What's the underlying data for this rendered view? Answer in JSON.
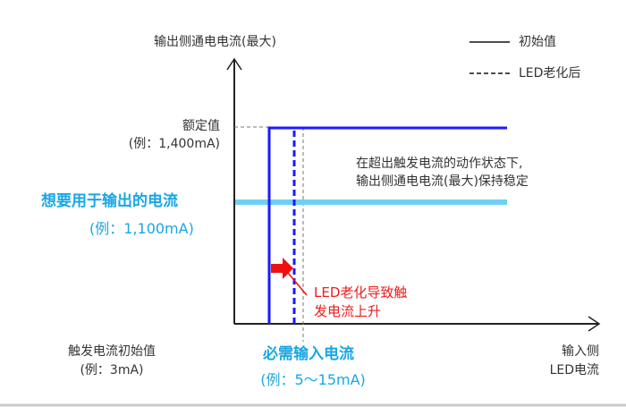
{
  "y_axis_label": "输出侧通电电流(最大)",
  "x_axis_label": [
    "输入侧",
    "LED电流"
  ],
  "legend": {
    "initial": "初始值",
    "aged": "LED老化后"
  },
  "rated": {
    "label": "额定值",
    "example": "(例：1,400mA)"
  },
  "desired_output": {
    "label": "想要用于输出的电流",
    "example": "(例：1,100mA)"
  },
  "trigger_initial": {
    "label": "触发电流初始值",
    "example": "(例：3mA)"
  },
  "required_input": {
    "label": "必需输入电流",
    "example": "(例：5～15mA)"
  },
  "stable_note": [
    "在超出触发电流的动作状态下,",
    "输出侧通电电流(最大)保持稳定"
  ],
  "aging_note": [
    "LED老化导致触",
    "发电流上升"
  ],
  "colors": {
    "curve": "#1a1aff",
    "desired": "#6fd0f5",
    "highlight": "#1aa6e4",
    "aging": "#ee1c1c"
  }
}
